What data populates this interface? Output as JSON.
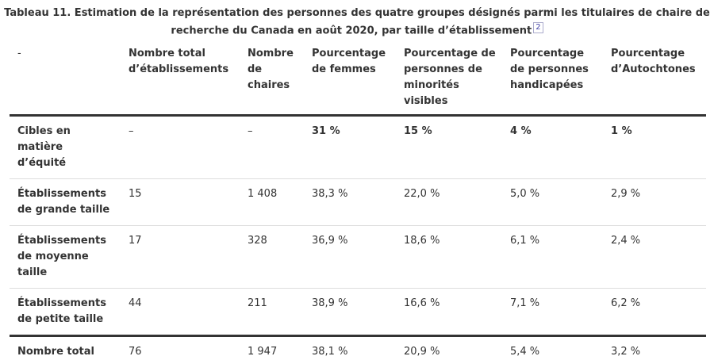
{
  "title": "Tableau 11. Estimation de la représentation des personnes des quatre groupes désignés parmi les titulaires de chaire de recherche du Canada en août 2020, par taille d’établissement",
  "footnote_ref": "2",
  "headers": [
    "-",
    "Nombre total d’établissements",
    "Nombre de chaires",
    "Pourcentage de femmes",
    "Pourcentage de personnes de minorités visibles",
    "Pourcentage de personnes handicapées",
    "Pourcentage d’Autochtones"
  ],
  "rows": [
    {
      "label": "Cibles en matière d’équité",
      "values": [
        "–",
        "–",
        "31 %",
        "15 %",
        "4 %",
        "1 %"
      ]
    },
    {
      "label": "Établissements de grande taille",
      "values": [
        "15",
        "1 408",
        "38,3 %",
        "22,0 %",
        "5,0 %",
        "2,9 %"
      ]
    },
    {
      "label": "Établissements de moyenne taille",
      "values": [
        "17",
        "328",
        "36,9 %",
        "18,6 %",
        "6,1 %",
        "2,4 %"
      ]
    },
    {
      "label": "Établissements de petite taille",
      "values": [
        "44",
        "211",
        "38,9 %",
        "16,6 %",
        "7,1 %",
        "6,2 %"
      ]
    }
  ],
  "total": {
    "label": "Nombre total",
    "values": [
      "76",
      "1 947",
      "38,1 %",
      "20,9 %",
      "5,4 %",
      "3,2 %"
    ]
  }
}
